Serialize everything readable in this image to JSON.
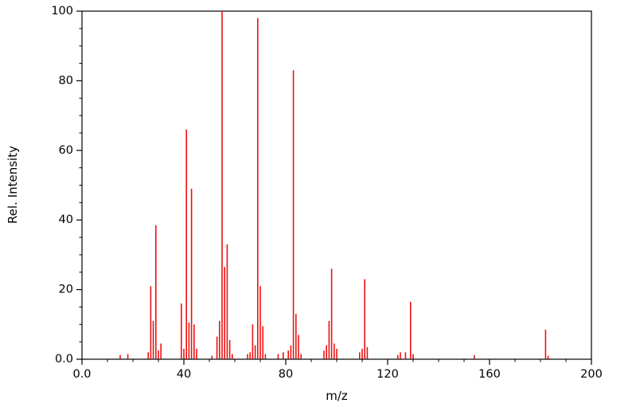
{
  "chart_data": {
    "type": "bar",
    "subtype": "mass-spectrum-stick-plot",
    "title": "",
    "xlabel": "m/z",
    "ylabel": "Rel. Intensity",
    "xlim": [
      0,
      200
    ],
    "ylim": [
      0,
      100
    ],
    "grid": false,
    "legend": "none",
    "frame": "full-box",
    "bar_color": "#ee1111",
    "axis_color": "#000000",
    "x_major_ticks": [
      0,
      40,
      80,
      120,
      160,
      200
    ],
    "x_tick_labels": [
      "0.0",
      "40",
      "80",
      "120",
      "160",
      "200"
    ],
    "x_minor_tick_step": 10,
    "y_major_ticks": [
      0,
      20,
      40,
      60,
      80,
      100
    ],
    "y_tick_labels": [
      "0.0",
      "20",
      "40",
      "60",
      "80",
      "100"
    ],
    "y_minor_tick_step": 5,
    "peaks": [
      {
        "mz": 15,
        "intensity": 1.2
      },
      {
        "mz": 18,
        "intensity": 1.5
      },
      {
        "mz": 26,
        "intensity": 2
      },
      {
        "mz": 27,
        "intensity": 21
      },
      {
        "mz": 28,
        "intensity": 11
      },
      {
        "mz": 29,
        "intensity": 38.5
      },
      {
        "mz": 30,
        "intensity": 2.5
      },
      {
        "mz": 31,
        "intensity": 4.5
      },
      {
        "mz": 39,
        "intensity": 16
      },
      {
        "mz": 40,
        "intensity": 3
      },
      {
        "mz": 41,
        "intensity": 66
      },
      {
        "mz": 42,
        "intensity": 10.5
      },
      {
        "mz": 43,
        "intensity": 49
      },
      {
        "mz": 44,
        "intensity": 10
      },
      {
        "mz": 45,
        "intensity": 3
      },
      {
        "mz": 51,
        "intensity": 1
      },
      {
        "mz": 53,
        "intensity": 6.5
      },
      {
        "mz": 54,
        "intensity": 11
      },
      {
        "mz": 55,
        "intensity": 100
      },
      {
        "mz": 56,
        "intensity": 26.5
      },
      {
        "mz": 57,
        "intensity": 33
      },
      {
        "mz": 58,
        "intensity": 5.5
      },
      {
        "mz": 59,
        "intensity": 1.5
      },
      {
        "mz": 65,
        "intensity": 1.5
      },
      {
        "mz": 66,
        "intensity": 2
      },
      {
        "mz": 67,
        "intensity": 10
      },
      {
        "mz": 68,
        "intensity": 4
      },
      {
        "mz": 69,
        "intensity": 98
      },
      {
        "mz": 70,
        "intensity": 21
      },
      {
        "mz": 71,
        "intensity": 9.5
      },
      {
        "mz": 72,
        "intensity": 1.5
      },
      {
        "mz": 77,
        "intensity": 1.5
      },
      {
        "mz": 79,
        "intensity": 2
      },
      {
        "mz": 81,
        "intensity": 2.5
      },
      {
        "mz": 82,
        "intensity": 4
      },
      {
        "mz": 83,
        "intensity": 83
      },
      {
        "mz": 84,
        "intensity": 13
      },
      {
        "mz": 85,
        "intensity": 7
      },
      {
        "mz": 86,
        "intensity": 1.5
      },
      {
        "mz": 95,
        "intensity": 2.5
      },
      {
        "mz": 96,
        "intensity": 4
      },
      {
        "mz": 97,
        "intensity": 11
      },
      {
        "mz": 98,
        "intensity": 26
      },
      {
        "mz": 99,
        "intensity": 4.5
      },
      {
        "mz": 100,
        "intensity": 3
      },
      {
        "mz": 109,
        "intensity": 2
      },
      {
        "mz": 110,
        "intensity": 3
      },
      {
        "mz": 111,
        "intensity": 23
      },
      {
        "mz": 112,
        "intensity": 3.5
      },
      {
        "mz": 124,
        "intensity": 1.2
      },
      {
        "mz": 125,
        "intensity": 2
      },
      {
        "mz": 127,
        "intensity": 2
      },
      {
        "mz": 129,
        "intensity": 16.5
      },
      {
        "mz": 130,
        "intensity": 1.5
      },
      {
        "mz": 154,
        "intensity": 1.2
      },
      {
        "mz": 182,
        "intensity": 8.5
      },
      {
        "mz": 183,
        "intensity": 1
      }
    ]
  }
}
